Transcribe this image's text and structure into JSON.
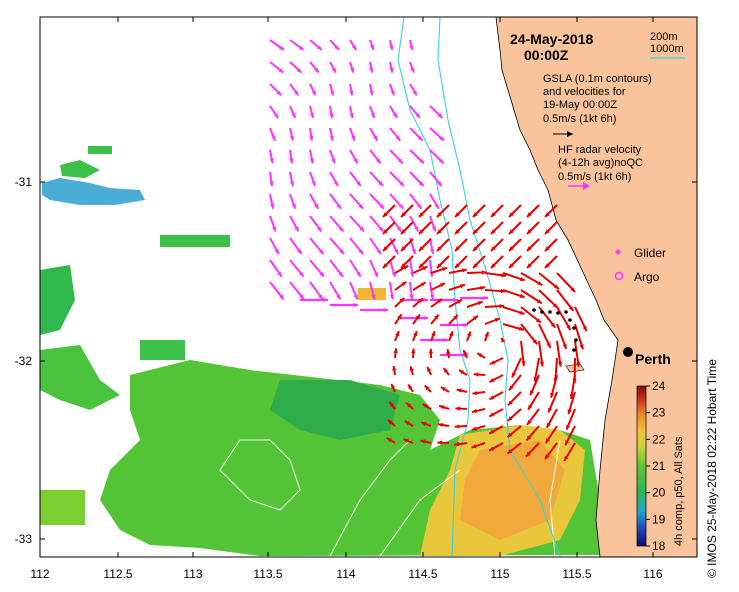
{
  "title": {
    "date": "24-May-2018",
    "time": "00:00Z"
  },
  "legend_isobaths": {
    "a": "200m",
    "b": "1000m"
  },
  "gsla_legend": {
    "l1": "GSLA (0.1m contours)",
    "l2": "and velocities for",
    "l3": "19-May 00:00Z",
    "l4": "0.5m/s (1kt 6h)"
  },
  "hf_legend": {
    "l1": "HF radar velocity",
    "l2": "(4-12h avg)noQC",
    "l3": "0.5m/s (1kt 6h)"
  },
  "markers": {
    "glider": "Glider",
    "argo": "Argo"
  },
  "place": {
    "city": "Perth"
  },
  "axes": {
    "x_ticks": [
      "112",
      "112.5",
      "113",
      "113.5",
      "114",
      "114.5",
      "115",
      "115.5",
      "116"
    ],
    "y_ticks": [
      "-31",
      "-32",
      "-33"
    ]
  },
  "colorbar": {
    "ticks": [
      "24",
      "23",
      "22",
      "21",
      "20",
      "19",
      "18"
    ],
    "label": "4h comp, p50, All Sats",
    "min": 18,
    "max": 24
  },
  "side_text": "© IMOS 25-May-2018 02:22 Hobart Time",
  "colors": {
    "land": "#f9c39b",
    "gsla_arrows": "#ff33ff",
    "hf_arrows": "#e80000",
    "isobath": "#35d4dd"
  }
}
